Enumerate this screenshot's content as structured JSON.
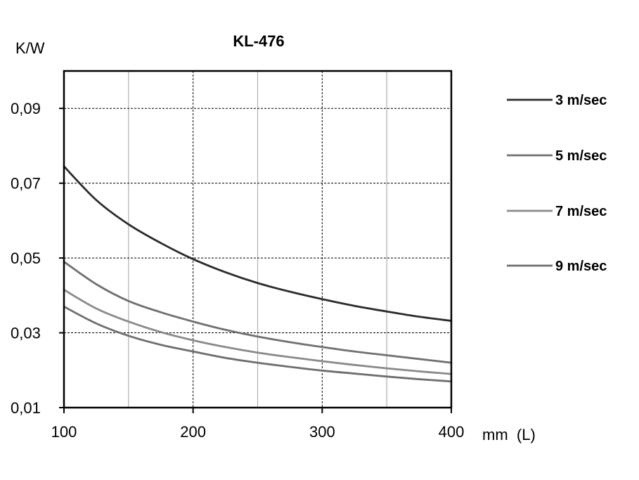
{
  "chart_data": {
    "type": "line",
    "title": "KL-476",
    "xlabel": "mm  (L)",
    "ylabel": "K/W",
    "xlim": [
      100,
      400
    ],
    "ylim": [
      0.01,
      0.1
    ],
    "x_ticks": [
      {
        "value": 100,
        "label": "100"
      },
      {
        "value": 200,
        "label": "200"
      },
      {
        "value": 300,
        "label": "300"
      },
      {
        "value": 400,
        "label": "400"
      }
    ],
    "x_minor_grid": [
      150,
      250,
      350
    ],
    "y_ticks": [
      {
        "value": 0.01,
        "label": "0,01"
      },
      {
        "value": 0.03,
        "label": "0,03"
      },
      {
        "value": 0.05,
        "label": "0,05"
      },
      {
        "value": 0.07,
        "label": "0,07"
      },
      {
        "value": 0.09,
        "label": "0,09"
      }
    ],
    "grid": true,
    "legend_position": "right",
    "x": [
      100,
      125,
      150,
      175,
      200,
      225,
      250,
      275,
      300,
      325,
      350,
      375,
      400
    ],
    "series": [
      {
        "name": "3 m/sec",
        "color": "#2b2b2b",
        "values": [
          0.0745,
          0.0655,
          0.059,
          0.054,
          0.0497,
          0.0462,
          0.0433,
          0.041,
          0.039,
          0.0372,
          0.0357,
          0.0343,
          0.0332
        ]
      },
      {
        "name": "5 m/sec",
        "color": "#707070",
        "values": [
          0.049,
          0.043,
          0.0385,
          0.0355,
          0.033,
          0.0308,
          0.029,
          0.0275,
          0.0262,
          0.025,
          0.024,
          0.023,
          0.022
        ]
      },
      {
        "name": "7 m/sec",
        "color": "#8a8a8a",
        "values": [
          0.0415,
          0.0365,
          0.033,
          0.0302,
          0.028,
          0.0262,
          0.0247,
          0.0235,
          0.0224,
          0.0214,
          0.0205,
          0.0197,
          0.019
        ]
      },
      {
        "name": "9 m/sec",
        "color": "#6e6e6e",
        "values": [
          0.037,
          0.0325,
          0.0292,
          0.0268,
          0.025,
          0.0233,
          0.022,
          0.0209,
          0.0199,
          0.0191,
          0.0183,
          0.0176,
          0.017
        ]
      }
    ]
  }
}
